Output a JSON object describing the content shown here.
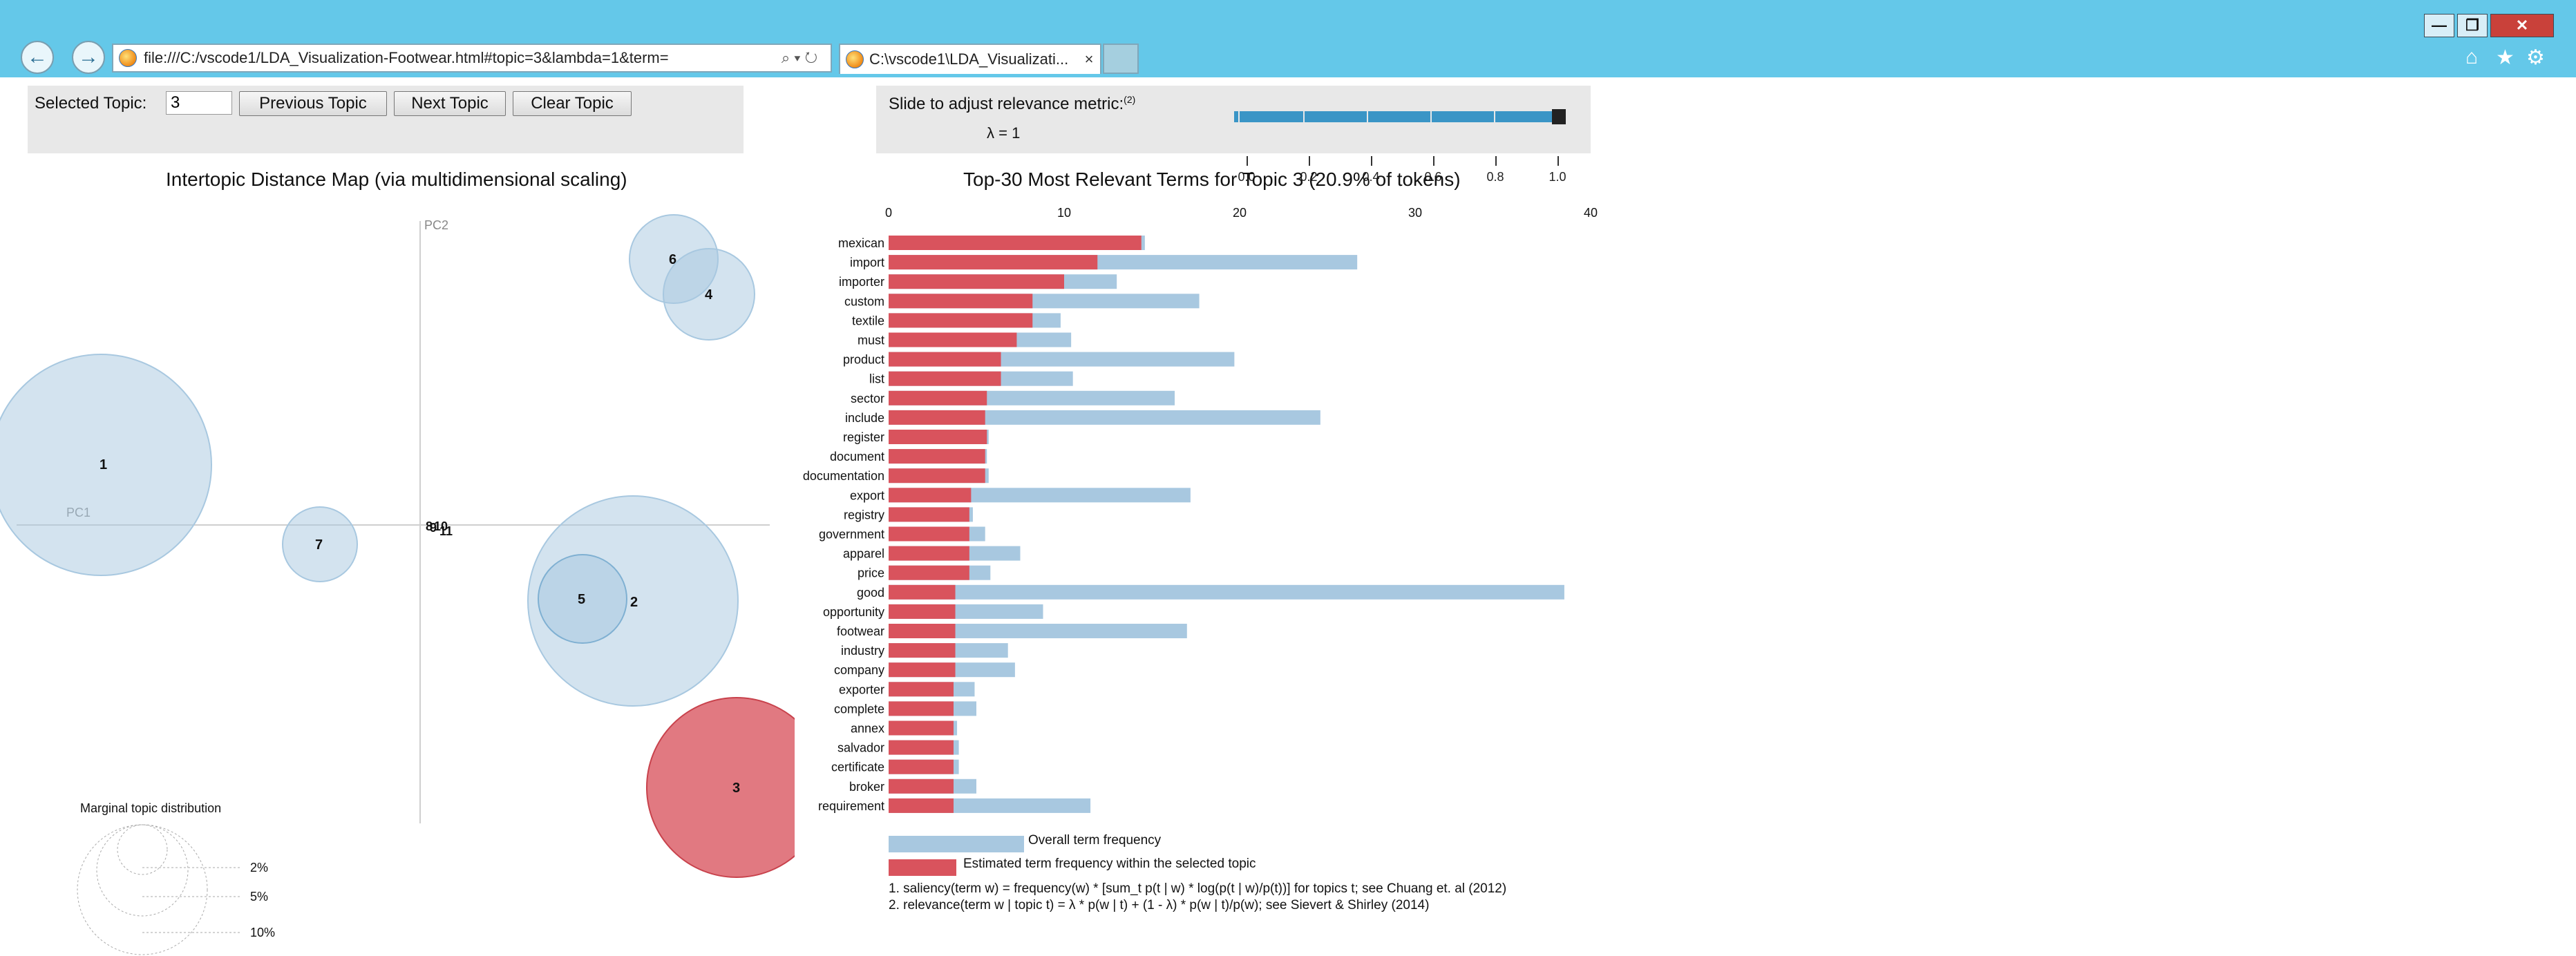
{
  "browser": {
    "url": "file:///C:/vscode1/LDA_Visualization-Footwear.html#topic=3&lambda=1&term=",
    "address_tools": "⌕ ▾ ↻",
    "tab_title": "C:\\vscode1\\LDA_Visualizati...",
    "tab_close": "×",
    "back_icon": "←",
    "forward_icon": "→",
    "minimize": "—",
    "restore": "❐",
    "close": "✕",
    "home_icon": "⌂",
    "star_icon": "★",
    "gear_icon": "⚙"
  },
  "controls": {
    "selected_topic_label": "Selected Topic:",
    "selected_topic_value": "3",
    "previous_topic": "Previous Topic",
    "next_topic": "Next Topic",
    "clear_topic": "Clear Topic",
    "relevance_label": "Slide to adjust relevance metric:",
    "relevance_footnote": "(2)",
    "lambda_text": "λ = 1",
    "lambda_value": 1,
    "slider_ticks": [
      "0.0",
      "0.2",
      "0.4",
      "0.6",
      "0.8",
      "1.0"
    ]
  },
  "intertopic_map": {
    "title": "Intertopic Distance Map (via multidimensional scaling)",
    "pc1_label": "PC1",
    "pc2_label": "PC2",
    "selected_topic": 3,
    "selected_color": "#d9535d",
    "bubble_color": "#a8c8e0",
    "marginal_title": "Marginal topic distribution",
    "marginal_levels": [
      "2%",
      "5%",
      "10%"
    ]
  },
  "chart_data": {
    "type": "bar",
    "title": "Top-30 Most Relevant Terms for Topic 3 (20.9% of tokens)",
    "orientation": "horizontal",
    "xlim": [
      0,
      40
    ],
    "x_ticks": [
      0,
      10,
      20,
      30,
      40
    ],
    "categories": [
      "mexican",
      "import",
      "importer",
      "custom",
      "textile",
      "must",
      "product",
      "list",
      "sector",
      "include",
      "register",
      "document",
      "documentation",
      "export",
      "registry",
      "government",
      "apparel",
      "price",
      "good",
      "opportunity",
      "footwear",
      "industry",
      "company",
      "exporter",
      "complete",
      "annex",
      "salvador",
      "certificate",
      "broker",
      "requirement"
    ],
    "series": [
      {
        "name": "Overall term frequency",
        "color": "#a8c8e0",
        "values": [
          14.6,
          26.7,
          13.0,
          17.7,
          9.8,
          10.4,
          19.7,
          10.5,
          16.3,
          24.6,
          5.7,
          5.6,
          5.7,
          17.2,
          4.8,
          5.5,
          7.5,
          5.8,
          38.5,
          8.8,
          17.0,
          6.8,
          7.2,
          4.9,
          5.0,
          3.9,
          4.0,
          4.0,
          5.0,
          11.5
        ]
      },
      {
        "name": "Estimated term frequency within the selected topic",
        "color": "#d9535d",
        "values": [
          14.4,
          11.9,
          10.0,
          8.2,
          8.2,
          7.3,
          6.4,
          6.4,
          5.6,
          5.5,
          5.6,
          5.5,
          5.5,
          4.7,
          4.6,
          4.6,
          4.6,
          4.6,
          3.8,
          3.8,
          3.8,
          3.8,
          3.8,
          3.7,
          3.7,
          3.7,
          3.7,
          3.7,
          3.7,
          3.7
        ]
      }
    ],
    "legend": {
      "overall": "Overall term frequency",
      "estimated": "Estimated term frequency within the selected topic"
    }
  },
  "footnotes": {
    "note1": "1. saliency(term w) = frequency(w) * [sum_t p(t | w) * log(p(t | w)/p(t))] for topics t; see Chuang et. al (2012)",
    "note2": "2. relevance(term w | topic t) = λ * p(w | t) + (1 - λ) * p(w | t)/p(w); see Sievert & Shirley (2014)"
  }
}
